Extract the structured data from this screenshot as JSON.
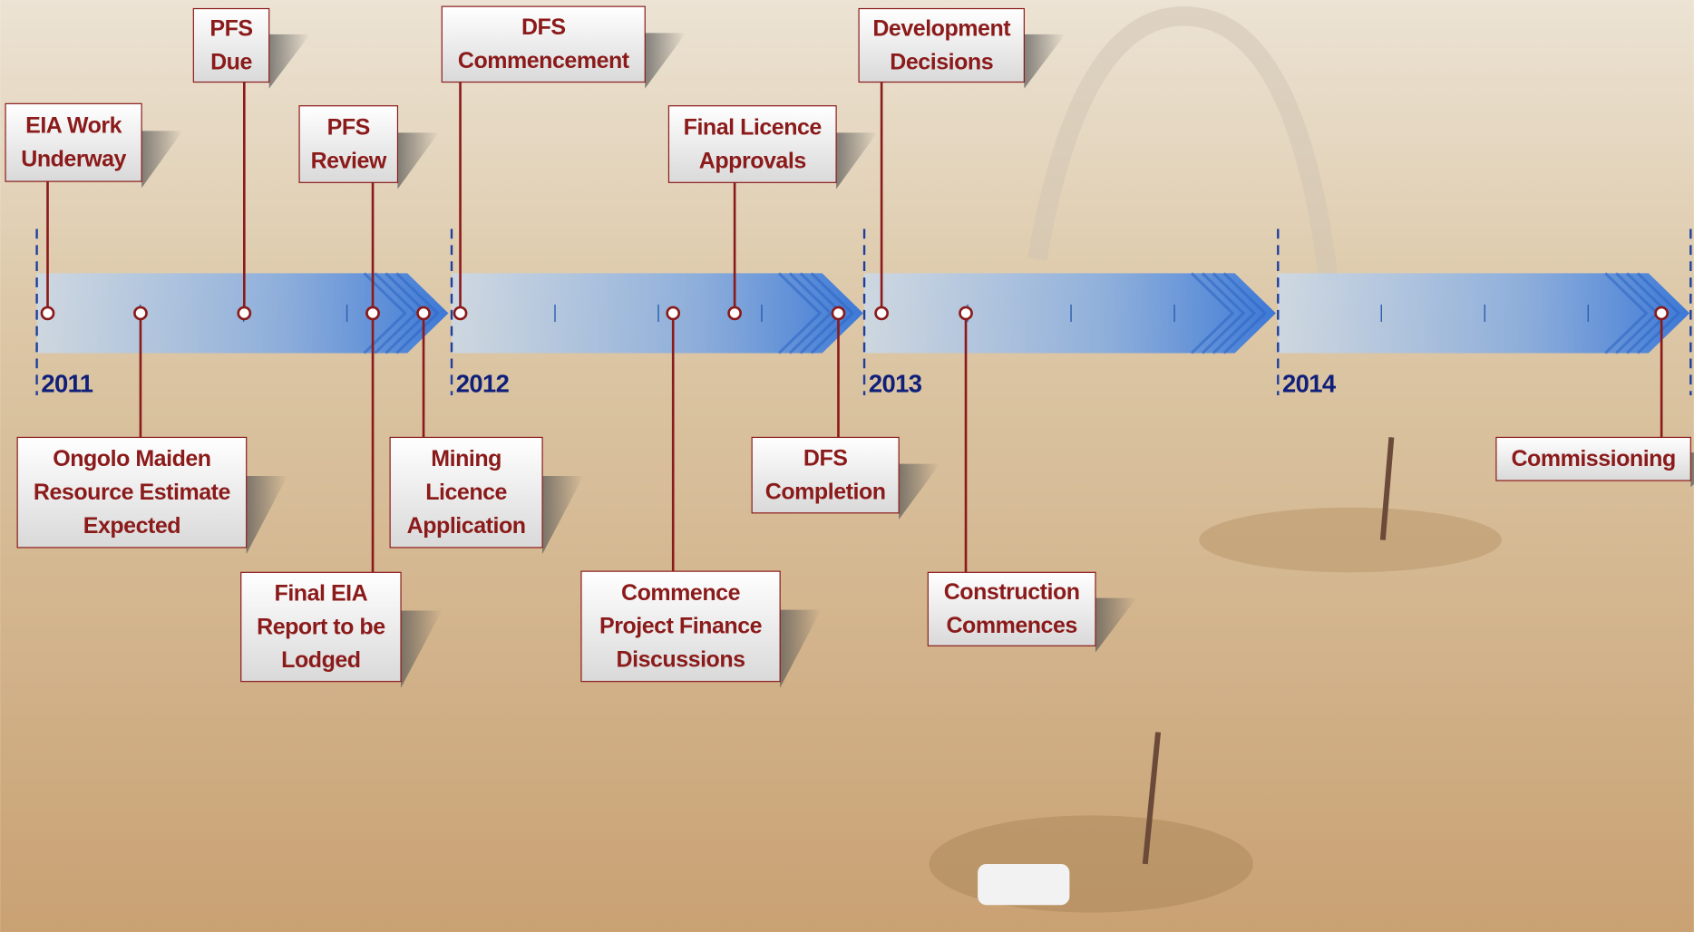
{
  "timeline": {
    "years": [
      "2011",
      "2012",
      "2013",
      "2014"
    ],
    "milestones": [
      {
        "lines": [
          "EIA Work",
          "Underway"
        ]
      },
      {
        "lines": [
          "PFS",
          "Due"
        ]
      },
      {
        "lines": [
          "PFS",
          "Review"
        ]
      },
      {
        "lines": [
          "DFS",
          "Commencement"
        ]
      },
      {
        "lines": [
          "Final Licence",
          "Approvals"
        ]
      },
      {
        "lines": [
          "Development",
          "Decisions"
        ]
      },
      {
        "lines": [
          "Ongolo Maiden",
          "Resource Estimate",
          "Expected"
        ]
      },
      {
        "lines": [
          "Final EIA",
          "Report to be",
          "Lodged"
        ]
      },
      {
        "lines": [
          "Mining",
          "Licence",
          "Application"
        ]
      },
      {
        "lines": [
          "Commence",
          "Project Finance",
          "Discussions"
        ]
      },
      {
        "lines": [
          "DFS",
          "Completion"
        ]
      },
      {
        "lines": [
          "Construction",
          "Commences"
        ]
      },
      {
        "lines": [
          "Commissioning"
        ]
      }
    ]
  }
}
